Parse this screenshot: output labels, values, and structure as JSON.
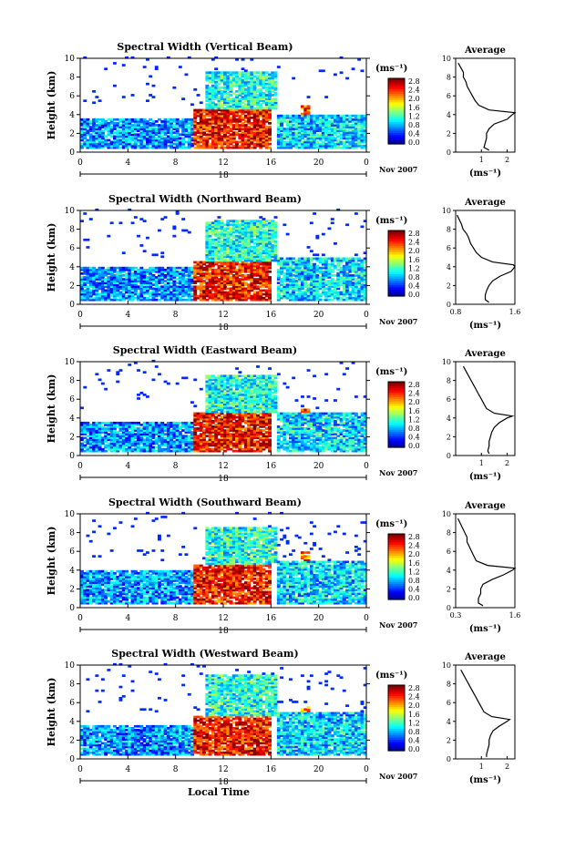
{
  "figure": {
    "date_label": "Nov 2007",
    "day_label": "18",
    "xlabel": "Local Time",
    "ylabel": "Height (km)",
    "colorbar_title": "(ms⁻¹)",
    "colorbar_ticks": [
      "2.8",
      "2.4",
      "2.0",
      "1.6",
      "1.2",
      "0.8",
      "0.4",
      "0.0"
    ],
    "avg_title": "Average",
    "avg_xlabel": "(ms⁻¹)"
  },
  "chart_data": [
    {
      "type": "heatmap",
      "title": "Spectral Width (Vertical Beam)",
      "xlabel": "",
      "ylabel": "Height (km)",
      "xlim": [
        0,
        24
      ],
      "ylim": [
        0,
        10
      ],
      "xticks": [
        "0",
        "4",
        "8",
        "12",
        "16",
        "20",
        "0"
      ],
      "yticks": [
        "0",
        "2",
        "4",
        "6",
        "8",
        "10"
      ],
      "colorbar": {
        "label": "(ms⁻¹)",
        "range": [
          0,
          3.0
        ]
      },
      "regions": [
        {
          "t": [
            0,
            9.5
          ],
          "h": [
            0.3,
            3.5
          ],
          "value": 0.8
        },
        {
          "t": [
            9.5,
            16
          ],
          "h": [
            0.3,
            4.5
          ],
          "value": 2.6
        },
        {
          "t": [
            10.5,
            16.5
          ],
          "h": [
            4.5,
            8.5
          ],
          "value": 1.2
        },
        {
          "t": [
            18.5,
            19.2
          ],
          "h": [
            0.5,
            5.0
          ],
          "value": 2.4
        },
        {
          "t": [
            16.5,
            24
          ],
          "h": [
            0.3,
            4.0
          ],
          "value": 1.0
        }
      ],
      "average": {
        "xticks": [
          "1",
          "2"
        ],
        "xlim": [
          0,
          2.3
        ],
        "height": [
          0.2,
          0.5,
          1,
          1.5,
          2,
          2.5,
          3,
          3.5,
          4,
          4.2,
          4.5,
          5,
          5.5,
          6,
          6.5,
          7,
          7.5,
          8,
          8.5,
          9,
          9.5
        ],
        "value": [
          1.3,
          1.1,
          1.15,
          1.2,
          1.2,
          1.3,
          1.5,
          2.0,
          2.2,
          2.3,
          1.3,
          0.9,
          0.75,
          0.65,
          0.55,
          0.45,
          0.4,
          0.3,
          0.3,
          0.2,
          0.1
        ]
      }
    },
    {
      "type": "heatmap",
      "title": "Spectral Width (Northward Beam)",
      "xlabel": "",
      "ylabel": "Height (km)",
      "xlim": [
        0,
        24
      ],
      "ylim": [
        0,
        10
      ],
      "xticks": [
        "0",
        "4",
        "8",
        "12",
        "16",
        "20",
        "0"
      ],
      "yticks": [
        "0",
        "2",
        "4",
        "6",
        "8",
        "10"
      ],
      "colorbar": {
        "label": "(ms⁻¹)",
        "range": [
          0,
          3.0
        ]
      },
      "regions": [
        {
          "t": [
            0,
            9.5
          ],
          "h": [
            0.3,
            4.0
          ],
          "value": 0.8
        },
        {
          "t": [
            9.5,
            16
          ],
          "h": [
            0.3,
            4.5
          ],
          "value": 2.6
        },
        {
          "t": [
            10.5,
            16.5
          ],
          "h": [
            4.5,
            9.0
          ],
          "value": 1.2
        },
        {
          "t": [
            18.5,
            19.2
          ],
          "h": [
            0.5,
            5.0
          ],
          "value": 2.4
        },
        {
          "t": [
            16.5,
            24
          ],
          "h": [
            0.3,
            5.0
          ],
          "value": 1.0
        }
      ],
      "average": {
        "xticks": [
          "0.8",
          "1.6"
        ],
        "xlim": [
          0.8,
          1.6
        ],
        "height": [
          0.2,
          0.5,
          1,
          1.5,
          2,
          2.5,
          3,
          3.5,
          4,
          4.2,
          4.5,
          5,
          5.5,
          6,
          6.5,
          7,
          7.5,
          8,
          8.5,
          9,
          9.5
        ],
        "value": [
          1.25,
          1.2,
          1.2,
          1.22,
          1.25,
          1.3,
          1.4,
          1.55,
          1.6,
          1.58,
          1.3,
          1.15,
          1.08,
          1.04,
          1.0,
          0.98,
          0.95,
          0.9,
          0.88,
          0.85,
          0.82
        ]
      }
    },
    {
      "type": "heatmap",
      "title": "Spectral Width (Eastward Beam)",
      "xlabel": "",
      "ylabel": "Height (km)",
      "xlim": [
        0,
        24
      ],
      "ylim": [
        0,
        10
      ],
      "xticks": [
        "0",
        "4",
        "8",
        "12",
        "16",
        "20",
        "0"
      ],
      "yticks": [
        "0",
        "2",
        "4",
        "6",
        "8",
        "10"
      ],
      "colorbar": {
        "label": "(ms⁻¹)",
        "range": [
          0,
          3.0
        ]
      },
      "regions": [
        {
          "t": [
            0,
            9.5
          ],
          "h": [
            0.3,
            3.5
          ],
          "value": 0.8
        },
        {
          "t": [
            9.5,
            16
          ],
          "h": [
            0.3,
            4.5
          ],
          "value": 2.6
        },
        {
          "t": [
            10.5,
            16.5
          ],
          "h": [
            4.5,
            8.5
          ],
          "value": 1.2
        },
        {
          "t": [
            18.5,
            19.2
          ],
          "h": [
            0.5,
            5.0
          ],
          "value": 2.4
        },
        {
          "t": [
            16.5,
            24
          ],
          "h": [
            0.3,
            4.5
          ],
          "value": 1.0
        }
      ],
      "average": {
        "xticks": [
          "1",
          "2"
        ],
        "xlim": [
          0,
          2.3
        ],
        "height": [
          0.2,
          0.5,
          1,
          1.5,
          2,
          2.5,
          3,
          3.5,
          4,
          4.2,
          4.5,
          5,
          5.5,
          6,
          6.5,
          7,
          7.5,
          8,
          8.5,
          9,
          9.5
        ],
        "value": [
          1.3,
          1.25,
          1.3,
          1.3,
          1.35,
          1.4,
          1.5,
          1.7,
          2.0,
          2.2,
          1.5,
          1.2,
          1.1,
          1.0,
          0.9,
          0.8,
          0.7,
          0.6,
          0.5,
          0.4,
          0.3
        ]
      }
    },
    {
      "type": "heatmap",
      "title": "Spectral Width (Southward Beam)",
      "xlabel": "",
      "ylabel": "Height (km)",
      "xlim": [
        0,
        24
      ],
      "ylim": [
        0,
        10
      ],
      "xticks": [
        "0",
        "4",
        "8",
        "12",
        "16",
        "20",
        "0"
      ],
      "yticks": [
        "0",
        "2",
        "4",
        "6",
        "8",
        "10"
      ],
      "colorbar": {
        "label": "(ms⁻¹)",
        "range": [
          0,
          3.0
        ]
      },
      "regions": [
        {
          "t": [
            0,
            9.5
          ],
          "h": [
            0.3,
            4.0
          ],
          "value": 0.8
        },
        {
          "t": [
            9.5,
            16
          ],
          "h": [
            0.3,
            4.5
          ],
          "value": 2.6
        },
        {
          "t": [
            10.5,
            16.5
          ],
          "h": [
            4.5,
            8.5
          ],
          "value": 1.2
        },
        {
          "t": [
            18.5,
            19.2
          ],
          "h": [
            0.5,
            6.0
          ],
          "value": 2.4
        },
        {
          "t": [
            16.5,
            24
          ],
          "h": [
            0.3,
            5.0
          ],
          "value": 1.0
        }
      ],
      "average": {
        "xticks": [
          "0.3",
          "1.6"
        ],
        "xlim": [
          0.3,
          1.6
        ],
        "height": [
          0.2,
          0.5,
          1,
          1.5,
          2,
          2.5,
          3,
          3.5,
          4,
          4.2,
          4.5,
          5,
          5.5,
          6,
          6.5,
          7,
          7.5,
          8,
          8.5,
          9,
          9.5
        ],
        "value": [
          0.9,
          0.8,
          0.8,
          0.85,
          0.85,
          0.9,
          1.1,
          1.35,
          1.55,
          1.6,
          1.0,
          0.75,
          0.7,
          0.65,
          0.6,
          0.55,
          0.55,
          0.5,
          0.45,
          0.4,
          0.35
        ]
      }
    },
    {
      "type": "heatmap",
      "title": "Spectral Width (Westward Beam)",
      "xlabel": "Local Time",
      "ylabel": "Height (km)",
      "xlim": [
        0,
        24
      ],
      "ylim": [
        0,
        10
      ],
      "xticks": [
        "0",
        "4",
        "8",
        "12",
        "16",
        "20",
        "0"
      ],
      "yticks": [
        "0",
        "2",
        "4",
        "6",
        "8",
        "10"
      ],
      "colorbar": {
        "label": "(ms⁻¹)",
        "range": [
          0,
          3.0
        ]
      },
      "regions": [
        {
          "t": [
            0,
            9.5
          ],
          "h": [
            0.3,
            3.5
          ],
          "value": 0.8
        },
        {
          "t": [
            9.5,
            16
          ],
          "h": [
            0.3,
            4.5
          ],
          "value": 2.6
        },
        {
          "t": [
            10.5,
            16.5
          ],
          "h": [
            4.5,
            9.0
          ],
          "value": 1.2
        },
        {
          "t": [
            18.5,
            19.2
          ],
          "h": [
            0.5,
            5.5
          ],
          "value": 2.4
        },
        {
          "t": [
            16.5,
            24
          ],
          "h": [
            0.3,
            5.0
          ],
          "value": 1.0
        }
      ],
      "average": {
        "xticks": [
          "1",
          "2"
        ],
        "xlim": [
          0,
          2.3
        ],
        "height": [
          0.2,
          0.5,
          1,
          1.5,
          2,
          2.5,
          3,
          3.5,
          4,
          4.2,
          4.5,
          5,
          5.5,
          6,
          6.5,
          7,
          7.5,
          8,
          8.5,
          9,
          9.5
        ],
        "value": [
          1.2,
          1.2,
          1.25,
          1.3,
          1.3,
          1.35,
          1.45,
          1.7,
          2.0,
          2.1,
          1.4,
          1.1,
          1.0,
          0.9,
          0.8,
          0.7,
          0.6,
          0.5,
          0.4,
          0.3,
          0.2
        ]
      }
    }
  ]
}
